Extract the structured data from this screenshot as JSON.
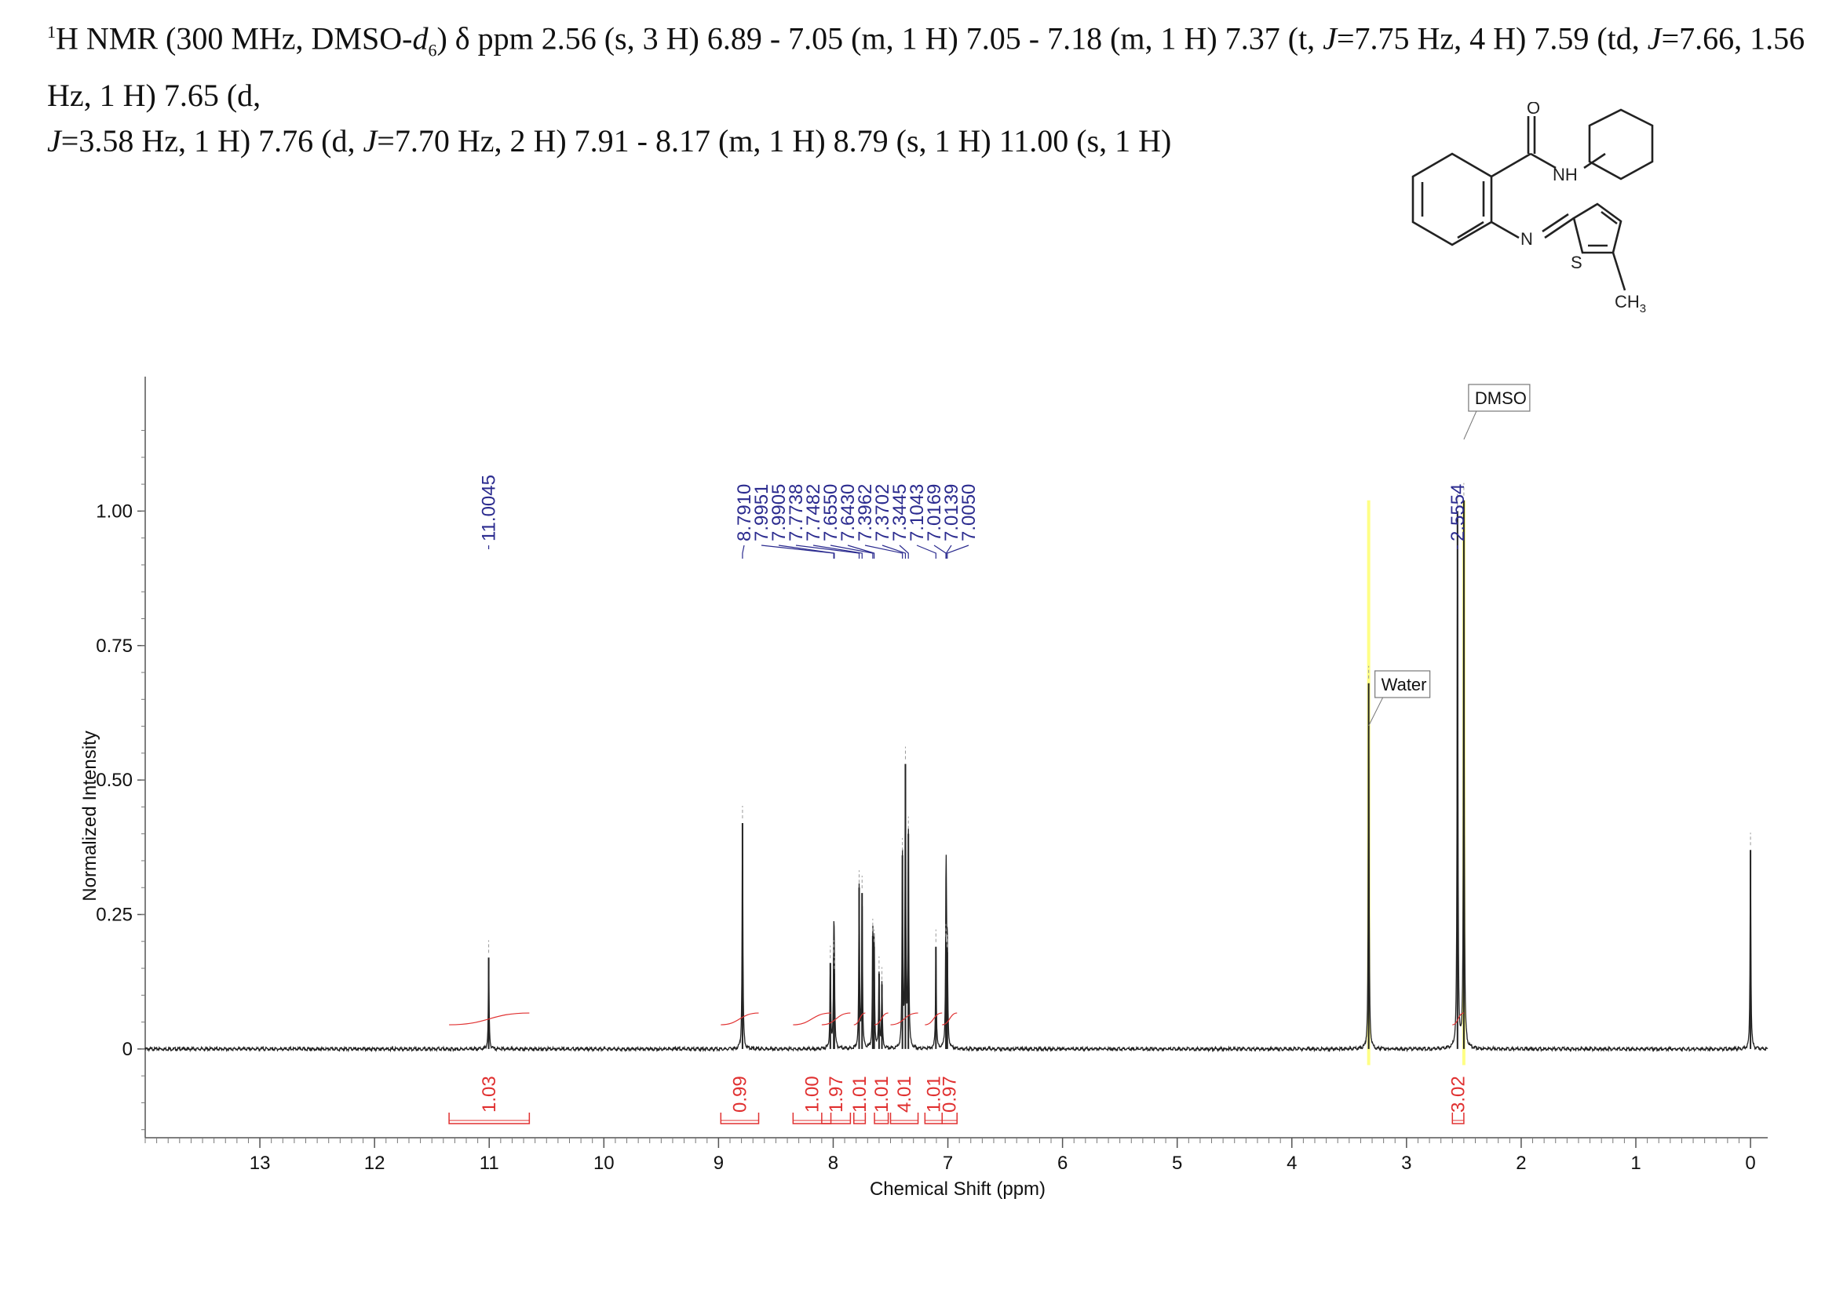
{
  "header": {
    "prefix": "1",
    "text_1": "H NMR (300 MHz, DMSO-",
    "d_label": "d",
    "sub_6": "6",
    "text_2": ") δ ppm 2.56 (s, 3 H) 6.89 - 7.05 (m, 1 H) 7.05 - 7.18 (m, 1 H) 7.37 (t,  ",
    "j1": "J",
    "text_3": "=7.75 Hz, 4 H) 7.59 (td, ",
    "j2": "J",
    "text_4": "=7.66, 1.56 Hz, 1 H) 7.65 (d,",
    "j3": "J",
    "text_5": "=3.58 Hz, 1 H) 7.76 (d, ",
    "j4": "J",
    "text_6": "=7.70 Hz, 2 H) 7.91 - 8.17 (m, 1 H) 8.79 (s, 1 H) 11.00 (s, 1 H)"
  },
  "structure": {
    "o_label": "O",
    "nh_label": "NH",
    "n_label": "N",
    "s_label": "S",
    "ch3_label": "CH",
    "ch3_sub": "3"
  },
  "chart_data": {
    "type": "line",
    "xlabel": "Chemical Shift (ppm)",
    "ylabel": "Normalized Intensity",
    "xlim": [
      14.0,
      -0.15
    ],
    "ylim": [
      -0.165,
      1.25
    ],
    "x_ticks": [
      13,
      12,
      11,
      10,
      9,
      8,
      7,
      6,
      5,
      4,
      3,
      2,
      1,
      0
    ],
    "y_ticks": [
      {
        "value": 1.0,
        "label": "1.00"
      },
      {
        "value": 0.75,
        "label": "0.75"
      },
      {
        "value": 0.5,
        "label": "0.50"
      },
      {
        "value": 0.25,
        "label": "0.25"
      },
      {
        "value": 0.0,
        "label": "0"
      }
    ],
    "peaks": [
      {
        "x": 11.0045,
        "y": 0.17
      },
      {
        "x": 8.791,
        "y": 0.42
      },
      {
        "x": 8.025,
        "y": 0.16
      },
      {
        "x": 7.9951,
        "y": 0.17
      },
      {
        "x": 7.9905,
        "y": 0.14
      },
      {
        "x": 7.7738,
        "y": 0.3
      },
      {
        "x": 7.7482,
        "y": 0.29
      },
      {
        "x": 7.655,
        "y": 0.21
      },
      {
        "x": 7.643,
        "y": 0.19
      },
      {
        "x": 7.6,
        "y": 0.14
      },
      {
        "x": 7.575,
        "y": 0.12
      },
      {
        "x": 7.3962,
        "y": 0.36
      },
      {
        "x": 7.3702,
        "y": 0.53
      },
      {
        "x": 7.3445,
        "y": 0.4
      },
      {
        "x": 7.1043,
        "y": 0.19
      },
      {
        "x": 7.0169,
        "y": 0.2
      },
      {
        "x": 7.0139,
        "y": 0.19
      },
      {
        "x": 7.005,
        "y": 0.18
      },
      {
        "x": 3.33,
        "y": 0.68
      },
      {
        "x": 2.5554,
        "y": 1.0
      },
      {
        "x": 2.5,
        "y": 1.02
      },
      {
        "x": 0.0,
        "y": 0.37
      }
    ],
    "peak_labels": [
      {
        "text": "11.0045",
        "x": 11.0045
      },
      {
        "text": "8.7910",
        "x": 8.791
      },
      {
        "text": "7.9951",
        "x": 7.9951
      },
      {
        "text": "7.9905",
        "x": 7.9905
      },
      {
        "text": "7.7738",
        "x": 7.7738
      },
      {
        "text": "7.7482",
        "x": 7.7482
      },
      {
        "text": "7.6550",
        "x": 7.655
      },
      {
        "text": "7.6430",
        "x": 7.643
      },
      {
        "text": "7.3962",
        "x": 7.3962
      },
      {
        "text": "7.3702",
        "x": 7.3702
      },
      {
        "text": "7.3445",
        "x": 7.3445
      },
      {
        "text": "7.1043",
        "x": 7.1043
      },
      {
        "text": "7.0169",
        "x": 7.0169
      },
      {
        "text": "7.0139",
        "x": 7.0139
      },
      {
        "text": "7.0050",
        "x": 7.005
      },
      {
        "text": "2.5554",
        "x": 2.5554
      }
    ],
    "integrals": [
      {
        "text": "1.03",
        "from": 11.35,
        "to": 10.65
      },
      {
        "text": "0.99",
        "from": 8.98,
        "to": 8.65
      },
      {
        "text": "1.00",
        "from": 8.35,
        "to": 8.02
      },
      {
        "text": "1.97",
        "from": 8.1,
        "to": 7.85
      },
      {
        "text": "1.01",
        "from": 7.82,
        "to": 7.72
      },
      {
        "text": "1.01",
        "from": 7.64,
        "to": 7.52
      },
      {
        "text": "4.01",
        "from": 7.5,
        "to": 7.26
      },
      {
        "text": "1.01",
        "from": 7.2,
        "to": 7.05
      },
      {
        "text": "0.97",
        "from": 7.05,
        "to": 6.92
      },
      {
        "text": "3.02",
        "from": 2.6,
        "to": 2.5
      }
    ],
    "annotations": [
      {
        "text": "Water",
        "x": 3.33
      },
      {
        "text": "DMSO",
        "x": 2.5
      }
    ],
    "colors": {
      "spectrum": "#222222",
      "peak_label": "#2b2b8f",
      "integral": "#e03030",
      "highlight": "#ffff66"
    }
  }
}
